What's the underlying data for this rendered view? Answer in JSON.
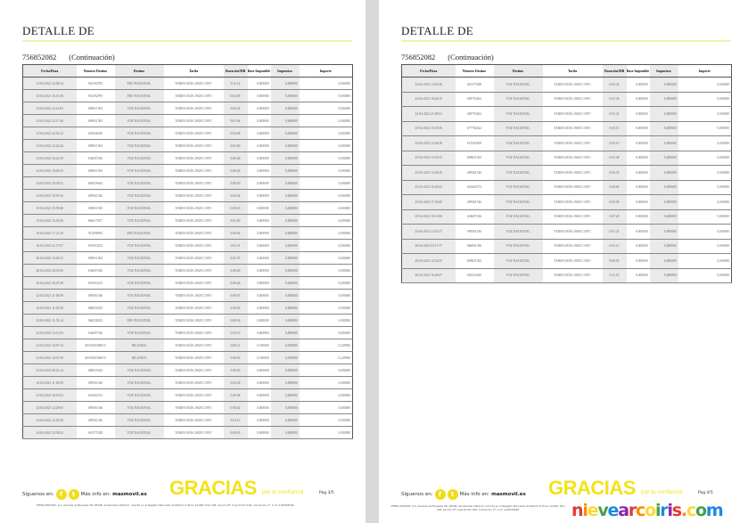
{
  "document": {
    "title": "DETALLE DE",
    "line_number": "756852082",
    "continuation": "(Continuación)",
    "columns": [
      "Fecha/Hora",
      "Número Destino",
      "Destino",
      "Tarifa",
      "Duración/MB",
      "Base Imponible",
      "Impuestos",
      "Importe"
    ]
  },
  "pages": [
    {
      "page_label": "Pag 3/5",
      "rows": [
        [
          "13-04-2021 12:00:14",
          "961302970",
          "FIJO NACIONAL",
          "TARIFA MÁS 29GB CONV",
          "0:11:12",
          "0,000000",
          "0,000000",
          "0,000000"
        ],
        [
          "13-04-2021 16:16:36",
          "961302970",
          "FIJO NACIONAL",
          "TARIFA MÁS 29GB CONV",
          "0:04:09",
          "0,000000",
          "0,000000",
          "0,000000"
        ],
        [
          "13-04-2021 22:14:03",
          "699651565",
          "VOZ NACIONAL",
          "TARIFA MÁS 29GB CONV",
          "0:00:42",
          "0,000000",
          "0,000000",
          "0,000000"
        ],
        [
          "13-04-2021 22:17:46",
          "699651565",
          "VOZ NACIONAL",
          "TARIFA MÁS 29GB CONV",
          "0:01:04",
          "0,000000",
          "0,000000",
          "0,000000"
        ],
        [
          "13-04-2021 22:52:12",
          "629646180",
          "VOZ NACIONAL",
          "TARIFA MÁS 29GB CONV",
          "0:04:58",
          "0,000000",
          "0,000000",
          "0,000000"
        ],
        [
          "14-04-2021 12:42:44",
          "699651565",
          "VOZ NACIONAL",
          "TARIFA MÁS 29GB CONV",
          "0:03:00",
          "0,000000",
          "0,000000",
          "0,000000"
        ],
        [
          "14-04-2021 16:22:59",
          "634697436",
          "VOZ NACIONAL",
          "TARIFA MÁS 29GB CONV",
          "0:06:46",
          "0,000000",
          "0,000000",
          "0,000000"
        ],
        [
          "14-04-2021 19:00:23",
          "699651565",
          "VOZ NACIONAL",
          "TARIFA MÁS 29GB CONV",
          "0:00:26",
          "0,000000",
          "0,000000",
          "0,000000"
        ],
        [
          "14-04-2021 19:54:51",
          "665059643",
          "VOZ NACIONAL",
          "TARIFA MÁS 29GB CONV",
          "0:00:50",
          "0,000000",
          "0,000000",
          "0,000000"
        ],
        [
          "14-04-2021 19:59:16",
          "699361546",
          "VOZ NACIONAL",
          "TARIFA MÁS 29GB CONV",
          "0:00:42",
          "0,000000",
          "0,000000",
          "0,000000"
        ],
        [
          "15-04-2021 15:59:48",
          "699651565",
          "VOZ NACIONAL",
          "TARIFA MÁS 29GB CONV",
          "0:00:16",
          "0,000000",
          "0,000000",
          "0,000000"
        ],
        [
          "15-04-2021 15:56:56",
          "666317677",
          "VOZ NACIONAL",
          "TARIFA MÁS 29GB CONV",
          "0:01:09",
          "0,000000",
          "0,000000",
          "0,000000"
        ],
        [
          "16-04-2021 17:21:29",
          "911096993",
          "FIJO NACIONAL",
          "TARIFA MÁS 29GB CONV",
          "0:00:02",
          "0,000000",
          "0,000000",
          "0,000000"
        ],
        [
          "16-04-2021 21:37:07",
          "667693233",
          "VOZ NACIONAL",
          "TARIFA MÁS 29GB CONV",
          "0:01:11",
          "0,000000",
          "0,000000",
          "0,000000"
        ],
        [
          "20-04-2021 13:40:12",
          "699651565",
          "VOZ NACIONAL",
          "TARIFA MÁS 29GB CONV",
          "0:01:37",
          "0,000000",
          "0,000000",
          "0,000000"
        ],
        [
          "20-04-2021 20:01:00",
          "634697436",
          "VOZ NACIONAL",
          "TARIFA MÁS 29GB CONV",
          "0:00:20",
          "0,000000",
          "0,000000",
          "0,000000"
        ],
        [
          "20-04-2021 20:07:29",
          "667693233",
          "VOZ NACIONAL",
          "TARIFA MÁS 29GB CONV",
          "0:00:46",
          "0,000000",
          "0,000000",
          "0,000000"
        ],
        [
          "22-04-2021 11:00:58",
          "699361546",
          "VOZ NACIONAL",
          "TARIFA MÁS 29GB CONV",
          "0:00:07",
          "0,000000",
          "0,000000",
          "0,000000"
        ],
        [
          "22-04-2021 11:01:58",
          "680035292",
          "VOZ NACIONAL",
          "TARIFA MÁS 29GB CONV",
          "0:00:03",
          "0,000000",
          "0,000000",
          "0,000000"
        ],
        [
          "22-04-2021 11:35:14",
          "968238433",
          "FIJO NACIONAL",
          "TARIFA MÁS 29GB CONV",
          "0:00:56",
          "0,000000",
          "0,000000",
          "0,000000"
        ],
        [
          "22-04-2021 13:13:25",
          "634697436",
          "VOZ NACIONAL",
          "TARIFA MÁS 29GB CONV",
          "0:02:19",
          "0,000000",
          "0,000000",
          "0,000000"
        ],
        [
          "22-04-2021 18:07:14",
          "0035350396813",
          "IRLANDA",
          "TARIFA MÁS 29GB CONV",
          "0:00:11",
          "0,190000",
          "0,039900",
          "0,229900"
        ],
        [
          "22-04-2021 18:07:50",
          "0035350396813",
          "IRLANDA",
          "TARIFA MÁS 29GB CONV",
          "0:00:03",
          "0,190000",
          "0,039900",
          "0,229900"
        ],
        [
          "23-04-2021 09:41:14",
          "680035292",
          "VOZ NACIONAL",
          "TARIFA MÁS 29GB CONV",
          "0:00:03",
          "0,000000",
          "0,000000",
          "0,000000"
        ],
        [
          "23-04-2021 11:18:59",
          "699361546",
          "VOZ NACIONAL",
          "TARIFA MÁS 29GB CONV",
          "0:02:28",
          "0,000000",
          "0,000000",
          "0,000000"
        ],
        [
          "23-04-2021 18:18:52",
          "623402372",
          "VOZ NACIONAL",
          "TARIFA MÁS 29GB CONV",
          "0:00:08",
          "0,000000",
          "0,000000",
          "0,000000"
        ],
        [
          "24-04-2021 12:29:05",
          "699361546",
          "VOZ NACIONAL",
          "TARIFA MÁS 29GB CONV",
          "0:00:02",
          "0,000000",
          "0,000000",
          "0,000000"
        ],
        [
          "24-04-2021 12:29:28",
          "699361546",
          "VOZ NACIONAL",
          "TARIFA MÁS 29GB CONV",
          "0:04:13",
          "0,000000",
          "0,000000",
          "0,000000"
        ],
        [
          "24-04-2021 12:58:52",
          "610375328",
          "VOZ NACIONAL",
          "TARIFA MÁS 29GB CONV",
          "0:00:03",
          "0,000000",
          "0,000000",
          "0,000000"
        ]
      ]
    },
    {
      "page_label": "Pag 4/5",
      "rows": [
        [
          "24-04-2021 13:29:46",
          "610375308",
          "VOZ NACIONAL",
          "TARIFA MÁS 29GB CONV",
          "0:02:32",
          "0,000000",
          "0,000000",
          "0,000000"
        ],
        [
          "24-04-2021 18:46:15",
          "609794562",
          "VOZ NACIONAL",
          "TARIFA MÁS 29GB CONV",
          "0:01:34",
          "0,000000",
          "0,000000",
          "0,000000"
        ],
        [
          "24-04-2021 21:08:51",
          "609794562",
          "VOZ NACIONAL",
          "TARIFA MÁS 29GB CONV",
          "0:01:21",
          "0,000000",
          "0,000000",
          "0,000000"
        ],
        [
          "25-04-2021 10:35:56",
          "677782422",
          "VOZ NACIONAL",
          "TARIFA MÁS 29GB CONV",
          "0:05:15",
          "0,000000",
          "0,000000",
          "0,000000"
        ],
        [
          "25-04-2021 12:28:18",
          "615582658",
          "VOZ NACIONAL",
          "TARIFA MÁS 29GB CONV",
          "0:00:13",
          "0,000000",
          "0,000000",
          "0,000000"
        ],
        [
          "25-04-2021 13:32:55",
          "699651565",
          "VOZ NACIONAL",
          "TARIFA MÁS 29GB CONV",
          "0:01:48",
          "0,000000",
          "0,000000",
          "0,000000"
        ],
        [
          "25-04-2021 13:46:29",
          "699581546",
          "VOZ NACIONAL",
          "TARIFA MÁS 29GB CONV",
          "0:00:25",
          "0,000000",
          "0,000000",
          "0,000000"
        ],
        [
          "25-04-2021 16:49:43",
          "623402372",
          "VOZ NACIONAL",
          "TARIFA MÁS 29GB CONV",
          "0:00:04",
          "0,000000",
          "0,000000",
          "0,000000"
        ],
        [
          "25-04-2021 17:54:00",
          "699581546",
          "VOZ NACIONAL",
          "TARIFA MÁS 29GB CONV",
          "0:03:56",
          "0,000000",
          "0,000000",
          "0,000000"
        ],
        [
          "25-04-2021 19:13:06",
          "634697436",
          "VOZ NACIONAL",
          "TARIFA MÁS 29GB CONV",
          "0:07:20",
          "0,000000",
          "0,000000",
          "0,000000"
        ],
        [
          "25-04-2021 22:10:17",
          "699581546",
          "VOZ NACIONAL",
          "TARIFA MÁS 29GB CONV",
          "0:01:25",
          "0,000000",
          "0,000000",
          "0,000000"
        ],
        [
          "26-04-2021 03:17:37",
          "666681396",
          "VOZ NACIONAL",
          "TARIFA MÁS 29GB CONV",
          "0:01:12",
          "0,000000",
          "0,000000",
          "0,000000"
        ],
        [
          "26-04-2021 12:54:55",
          "699651565",
          "VOZ NACIONAL",
          "TARIFA MÁS 29GB CONV",
          "0:00:03",
          "0,000000",
          "0,000000",
          "0,000000"
        ],
        [
          "26-04-2021 16:46:57",
          "650222020",
          "VOZ NACIONAL",
          "TARIFA MÁS 29GB CONV",
          "0:11:55",
          "0,000000",
          "0,000000",
          "0,000000"
        ]
      ]
    }
  ],
  "footer": {
    "follow_label": "Síguenos en:",
    "facebook_icon": "f",
    "twitter_icon": "t",
    "info_label": "Más info en:",
    "site": "masmovil.es",
    "thanks": "GRACIAS",
    "thanks_sub": "por tu confianza",
    "legal": "XFERA MÓVILES, S.A. Avenida de Bruselas 38, 28108, Alcobendas (Madrid). Inscrita en el Registro Mercantil de Madrid al Tomo 14.069, folio 148, sección 8ª, hoja M-231.106, inscripción 1ª. C.I.F. A-82528548"
  },
  "watermark": {
    "text": "nievearcoiris.com",
    "colors": [
      "#e53935",
      "#fb8c00",
      "#fdd835",
      "#43a047",
      "#1e88e5",
      "#8e24aa"
    ]
  },
  "colors": {
    "accent": "#f2e21a",
    "shaded_column": "#eaeaea"
  }
}
